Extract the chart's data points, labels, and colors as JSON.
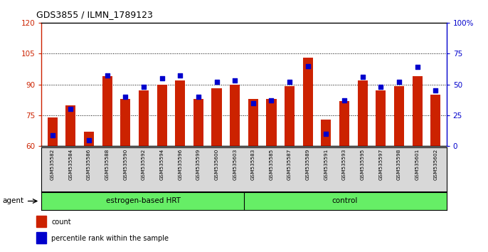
{
  "title": "GDS3855 / ILMN_1789123",
  "samples": [
    "GSM535582",
    "GSM535584",
    "GSM535586",
    "GSM535588",
    "GSM535590",
    "GSM535592",
    "GSM535594",
    "GSM535596",
    "GSM535599",
    "GSM535600",
    "GSM535603",
    "GSM535583",
    "GSM535585",
    "GSM535587",
    "GSM535589",
    "GSM535591",
    "GSM535593",
    "GSM535595",
    "GSM535597",
    "GSM535598",
    "GSM535601",
    "GSM535602"
  ],
  "red_values": [
    74,
    80,
    67,
    94,
    83,
    87,
    90,
    92,
    83,
    88,
    90,
    83,
    83,
    89,
    103,
    73,
    82,
    92,
    87,
    89,
    94,
    85
  ],
  "blue_values": [
    9,
    30,
    5,
    57,
    40,
    48,
    55,
    57,
    40,
    52,
    53,
    35,
    37,
    52,
    65,
    10,
    37,
    56,
    48,
    52,
    64,
    45
  ],
  "group1_label": "estrogen-based HRT",
  "group2_label": "control",
  "group1_count": 11,
  "group2_count": 11,
  "ylim_left": [
    60,
    120
  ],
  "ylim_right": [
    0,
    100
  ],
  "yticks_left": [
    60,
    75,
    90,
    105,
    120
  ],
  "yticks_right": [
    0,
    25,
    50,
    75,
    100
  ],
  "ytick_labels_right": [
    "0",
    "25",
    "50",
    "75",
    "100%"
  ],
  "bar_color": "#cc2200",
  "dot_color": "#0000cc",
  "label_bg_color": "#d8d8d8",
  "group_bg_color": "#66ee66",
  "left_tick_color": "#cc2200",
  "right_tick_color": "#0000cc",
  "legend_count_label": "count",
  "legend_pct_label": "percentile rank within the sample",
  "agent_label": "agent"
}
